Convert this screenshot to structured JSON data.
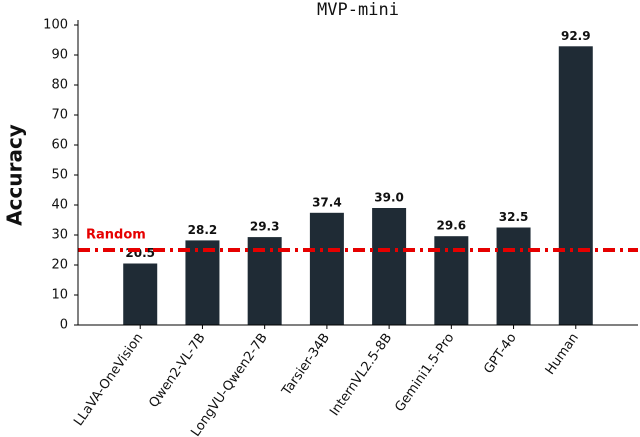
{
  "chart_data": {
    "type": "bar",
    "title": "MVP-mini",
    "y_label": "Accuracy",
    "categories": [
      "LLaVA-OneVision",
      "Qwen2-VL-7B",
      "LongVU-Qwen2-7B",
      "Tarsier-34B",
      "InternVL2.5-8B",
      "Gemini1.5-Pro",
      "GPT-4o",
      "Human"
    ],
    "values": [
      20.5,
      28.2,
      29.3,
      37.4,
      39.0,
      29.6,
      32.5,
      92.9
    ],
    "value_labels": [
      "20.5",
      "28.2",
      "29.3",
      "37.4",
      "39.0",
      "29.6",
      "32.5",
      "92.9"
    ],
    "color": "#1f2b35",
    "ylim": [
      0,
      100
    ],
    "yticks": [
      0,
      10,
      20,
      30,
      40,
      50,
      60,
      70,
      80,
      90,
      100
    ],
    "reference_line": {
      "value": 25,
      "label": "Random",
      "color": "#e60000"
    }
  }
}
